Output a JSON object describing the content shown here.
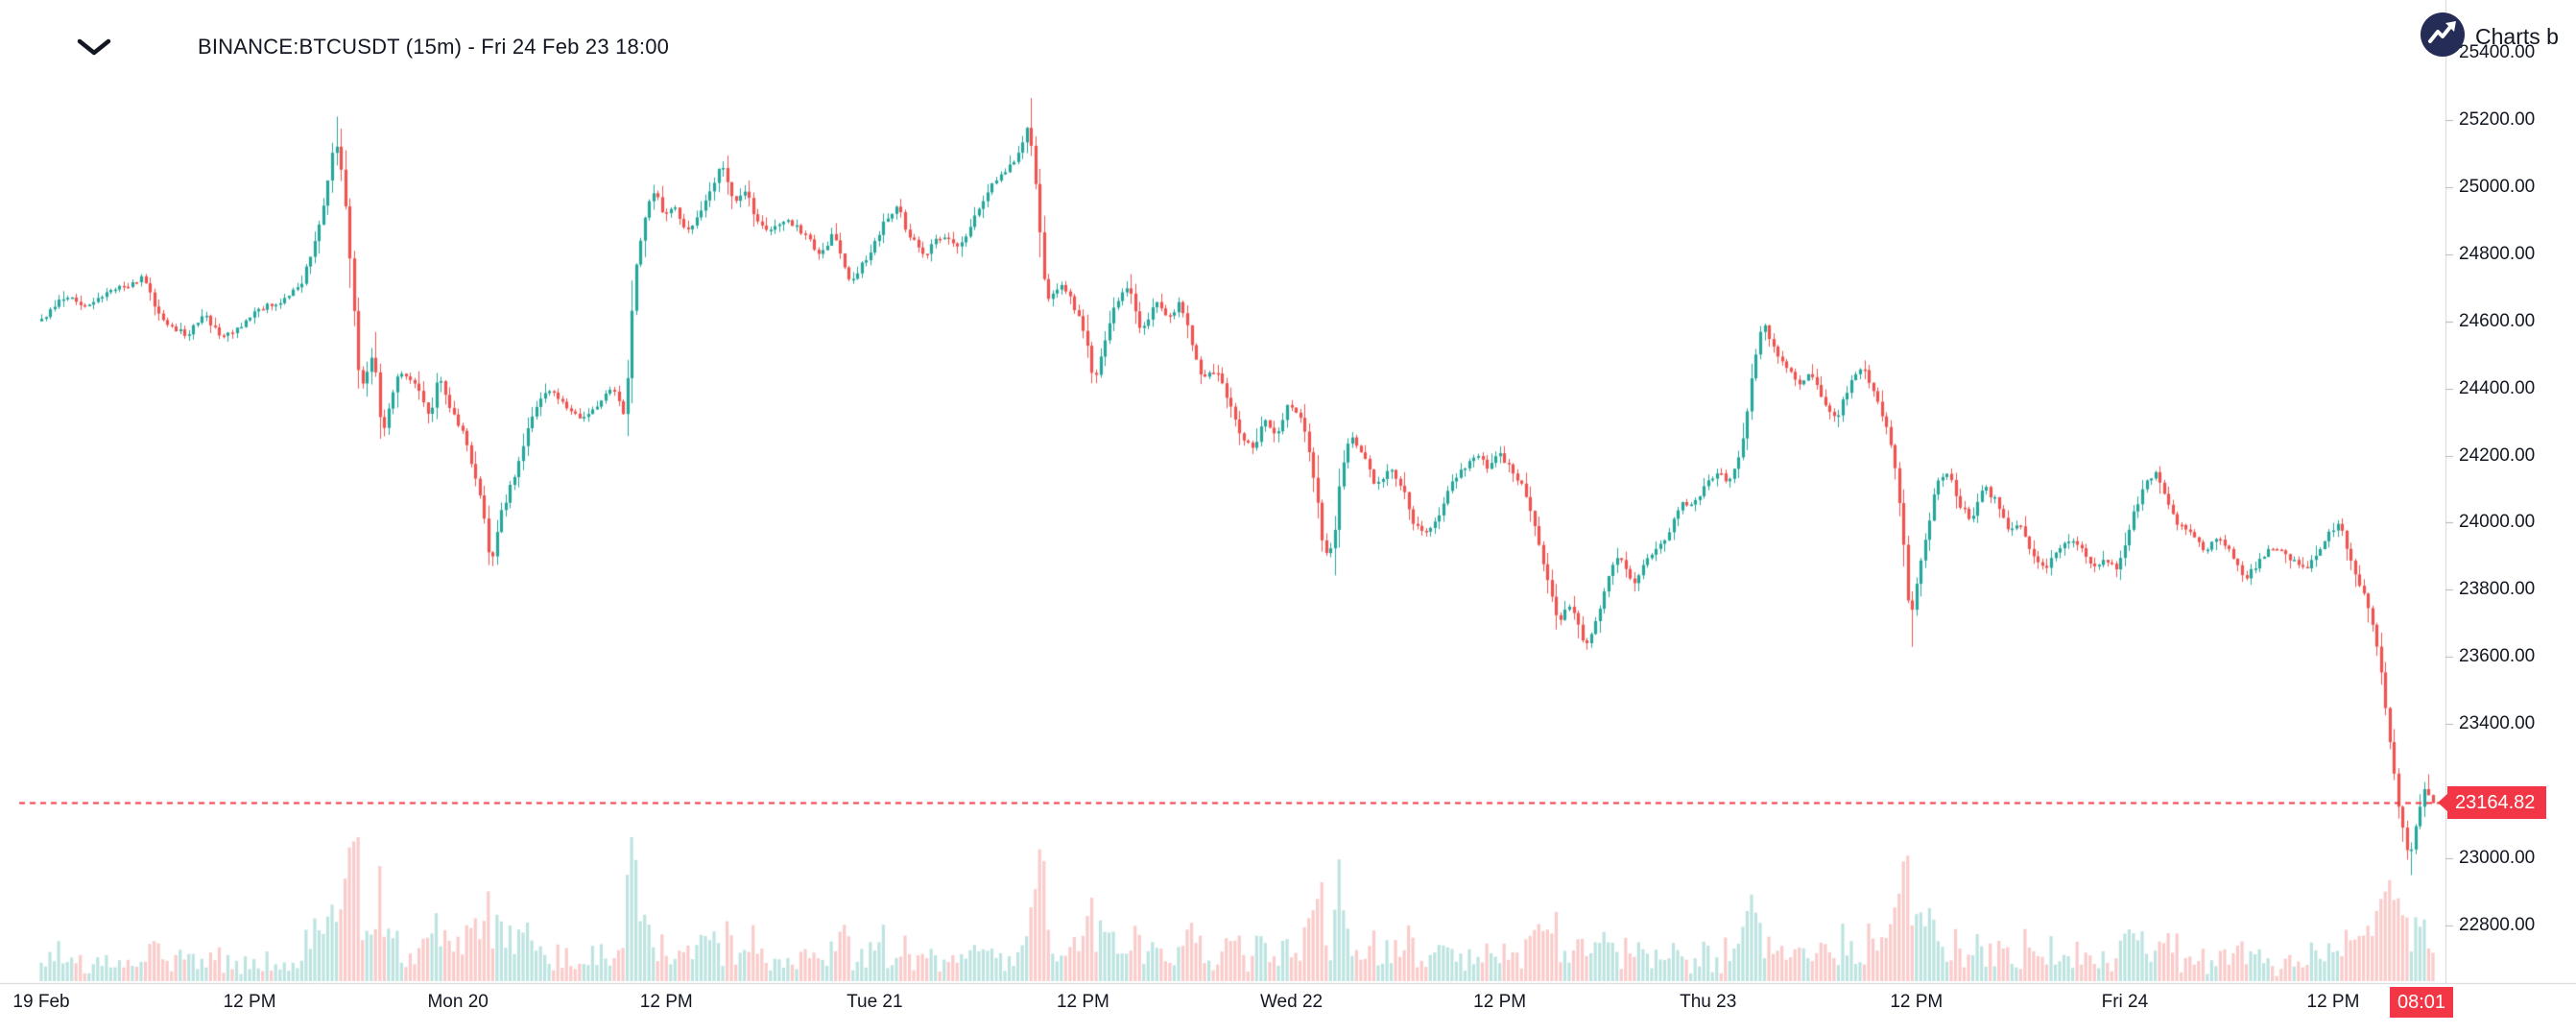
{
  "chart": {
    "title": "BINANCE:BTCUSDT (15m) - Fri 24 Feb 23 18:00",
    "symbol": "BINANCE:BTCUSDT",
    "interval": "15m",
    "last_price_label": "23164.82",
    "countdown_label": "08:01"
  },
  "attribution": {
    "label": "Charts b",
    "logo": "tradingview-logo"
  },
  "colors": {
    "up": "#26a69a",
    "down": "#ef5350",
    "volume_up": "rgba(38,166,154,0.3)",
    "volume_down": "rgba(239,83,80,0.3)",
    "accent_red": "#f23645",
    "text": "#131722",
    "axis_line": "#d1d4dc",
    "tick_mark": "#b2b5be",
    "logo_bg": "#252c56"
  },
  "chart_data": {
    "type": "candlestick",
    "title": "BINANCE:BTCUSDT (15m) - Fri 24 Feb 23 18:00",
    "symbol": "BINANCE:BTCUSDT",
    "interval_minutes": 15,
    "bars_total": 552,
    "last_price": 23164.82,
    "price_line": {
      "value": 23164.82,
      "style": "dashed",
      "color": "#f23645"
    },
    "y_axis": {
      "price_top": 25400,
      "price_bottom": 22800,
      "tick_step": 200,
      "ticks": [
        25400,
        25200,
        25000,
        24800,
        24600,
        24400,
        24200,
        24000,
        23800,
        23600,
        23400,
        23000,
        22800
      ],
      "tick_format": "0.00"
    },
    "x_axis": {
      "ticks": [
        {
          "label": "19 Feb",
          "bar": 0
        },
        {
          "label": "12 PM",
          "bar": 48
        },
        {
          "label": "Mon 20",
          "bar": 96
        },
        {
          "label": "12 PM",
          "bar": 144
        },
        {
          "label": "Tue 21",
          "bar": 192
        },
        {
          "label": "12 PM",
          "bar": 240
        },
        {
          "label": "Wed 22",
          "bar": 288
        },
        {
          "label": "12 PM",
          "bar": 336
        },
        {
          "label": "Thu 23",
          "bar": 384
        },
        {
          "label": "12 PM",
          "bar": 432
        },
        {
          "label": "Fri 24",
          "bar": 480
        },
        {
          "label": "12 PM",
          "bar": 528
        }
      ]
    },
    "price_path_anchors": [
      [
        0,
        24600
      ],
      [
        6,
        24680
      ],
      [
        11,
        24640
      ],
      [
        17,
        24690
      ],
      [
        24,
        24730
      ],
      [
        28,
        24600
      ],
      [
        34,
        24560
      ],
      [
        38,
        24620
      ],
      [
        42,
        24550
      ],
      [
        47,
        24590
      ],
      [
        51,
        24640
      ],
      [
        55,
        24650
      ],
      [
        60,
        24700
      ],
      [
        64,
        24850
      ],
      [
        67,
        25040
      ],
      [
        68,
        25160
      ],
      [
        70,
        25020
      ],
      [
        72,
        24720
      ],
      [
        74,
        24380
      ],
      [
        77,
        24520
      ],
      [
        79,
        24260
      ],
      [
        83,
        24450
      ],
      [
        87,
        24410
      ],
      [
        90,
        24300
      ],
      [
        92,
        24450
      ],
      [
        94,
        24360
      ],
      [
        98,
        24260
      ],
      [
        102,
        24060
      ],
      [
        104,
        23870
      ],
      [
        106,
        24010
      ],
      [
        110,
        24160
      ],
      [
        113,
        24300
      ],
      [
        117,
        24400
      ],
      [
        121,
        24350
      ],
      [
        125,
        24310
      ],
      [
        129,
        24360
      ],
      [
        132,
        24400
      ],
      [
        135,
        24310
      ],
      [
        137,
        24720
      ],
      [
        140,
        24950
      ],
      [
        142,
        25000
      ],
      [
        144,
        24900
      ],
      [
        146,
        24950
      ],
      [
        149,
        24860
      ],
      [
        152,
        24910
      ],
      [
        155,
        25000
      ],
      [
        157,
        25070
      ],
      [
        160,
        24950
      ],
      [
        163,
        25000
      ],
      [
        165,
        24900
      ],
      [
        168,
        24860
      ],
      [
        172,
        24910
      ],
      [
        176,
        24860
      ],
      [
        180,
        24800
      ],
      [
        183,
        24860
      ],
      [
        187,
        24710
      ],
      [
        191,
        24800
      ],
      [
        195,
        24900
      ],
      [
        198,
        24950
      ],
      [
        200,
        24860
      ],
      [
        204,
        24800
      ],
      [
        208,
        24860
      ],
      [
        212,
        24810
      ],
      [
        215,
        24900
      ],
      [
        219,
        25000
      ],
      [
        223,
        25050
      ],
      [
        226,
        25110
      ],
      [
        228,
        25200
      ],
      [
        230,
        24950
      ],
      [
        232,
        24660
      ],
      [
        235,
        24710
      ],
      [
        238,
        24660
      ],
      [
        241,
        24560
      ],
      [
        243,
        24420
      ],
      [
        246,
        24560
      ],
      [
        248,
        24660
      ],
      [
        251,
        24710
      ],
      [
        254,
        24560
      ],
      [
        257,
        24660
      ],
      [
        260,
        24610
      ],
      [
        263,
        24660
      ],
      [
        266,
        24510
      ],
      [
        268,
        24420
      ],
      [
        271,
        24460
      ],
      [
        274,
        24360
      ],
      [
        277,
        24260
      ],
      [
        280,
        24210
      ],
      [
        282,
        24310
      ],
      [
        285,
        24260
      ],
      [
        288,
        24360
      ],
      [
        291,
        24310
      ],
      [
        294,
        24110
      ],
      [
        296,
        23900
      ],
      [
        298,
        23920
      ],
      [
        300,
        24160
      ],
      [
        302,
        24260
      ],
      [
        305,
        24210
      ],
      [
        308,
        24110
      ],
      [
        311,
        24160
      ],
      [
        314,
        24110
      ],
      [
        316,
        24010
      ],
      [
        319,
        23960
      ],
      [
        322,
        24010
      ],
      [
        325,
        24110
      ],
      [
        328,
        24160
      ],
      [
        331,
        24210
      ],
      [
        334,
        24160
      ],
      [
        336,
        24210
      ],
      [
        339,
        24160
      ],
      [
        342,
        24110
      ],
      [
        345,
        23960
      ],
      [
        348,
        23810
      ],
      [
        350,
        23710
      ],
      [
        353,
        23760
      ],
      [
        356,
        23630
      ],
      [
        359,
        23710
      ],
      [
        362,
        23860
      ],
      [
        364,
        23910
      ],
      [
        367,
        23810
      ],
      [
        369,
        23860
      ],
      [
        372,
        23910
      ],
      [
        375,
        23960
      ],
      [
        378,
        24060
      ],
      [
        381,
        24060
      ],
      [
        384,
        24110
      ],
      [
        387,
        24160
      ],
      [
        389,
        24110
      ],
      [
        392,
        24210
      ],
      [
        395,
        24460
      ],
      [
        397,
        24600
      ],
      [
        400,
        24510
      ],
      [
        403,
        24460
      ],
      [
        406,
        24410
      ],
      [
        408,
        24460
      ],
      [
        411,
        24360
      ],
      [
        414,
        24310
      ],
      [
        417,
        24410
      ],
      [
        420,
        24460
      ],
      [
        422,
        24410
      ],
      [
        425,
        24310
      ],
      [
        427,
        24210
      ],
      [
        429,
        24010
      ],
      [
        431,
        23710
      ],
      [
        434,
        23910
      ],
      [
        437,
        24110
      ],
      [
        440,
        24150
      ],
      [
        442,
        24060
      ],
      [
        445,
        24010
      ],
      [
        448,
        24110
      ],
      [
        451,
        24060
      ],
      [
        454,
        23960
      ],
      [
        456,
        24010
      ],
      [
        459,
        23910
      ],
      [
        462,
        23860
      ],
      [
        465,
        23910
      ],
      [
        468,
        23960
      ],
      [
        471,
        23910
      ],
      [
        474,
        23860
      ],
      [
        476,
        23890
      ],
      [
        479,
        23860
      ],
      [
        482,
        24010
      ],
      [
        485,
        24110
      ],
      [
        488,
        24150
      ],
      [
        490,
        24060
      ],
      [
        493,
        23990
      ],
      [
        496,
        23960
      ],
      [
        499,
        23910
      ],
      [
        502,
        23960
      ],
      [
        505,
        23910
      ],
      [
        508,
        23830
      ],
      [
        510,
        23860
      ],
      [
        513,
        23910
      ],
      [
        516,
        23930
      ],
      [
        519,
        23890
      ],
      [
        522,
        23860
      ],
      [
        524,
        23890
      ],
      [
        527,
        23960
      ],
      [
        530,
        24000
      ],
      [
        532,
        23910
      ],
      [
        534,
        23830
      ],
      [
        536,
        23780
      ],
      [
        539,
        23610
      ],
      [
        541,
        23400
      ],
      [
        543,
        23200
      ],
      [
        545,
        23050
      ],
      [
        546,
        22990
      ],
      [
        548,
        23120
      ],
      [
        550,
        23230
      ],
      [
        551,
        23164.82
      ]
    ],
    "wick_markers": [
      {
        "bar": 68,
        "high": 25210
      },
      {
        "bar": 228,
        "high": 25265
      },
      {
        "bar": 431,
        "low": 23630
      },
      {
        "bar": 546,
        "low": 22950
      }
    ]
  }
}
